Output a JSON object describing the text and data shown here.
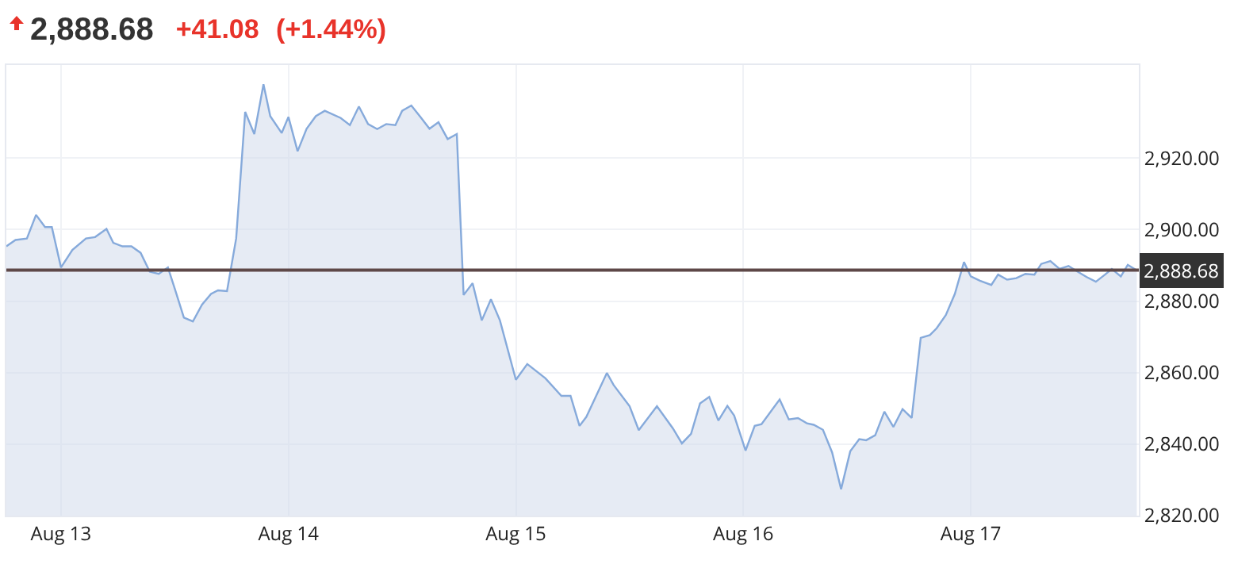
{
  "chart_data": {
    "type": "area",
    "title": "2,888.68",
    "subtitle": "+41.08 (+1.44%)",
    "x": [
      "--08-12T18:14",
      "--08-12T19:12",
      "--08-12T20:24",
      "--08-12T21:22",
      "--08-12T22:19",
      "--08-12T23:02",
      "--08-13T00:00",
      "--08-13T01:12",
      "--08-13T02:38",
      "--08-13T03:36",
      "--08-13T04:48",
      "--08-13T05:31",
      "--08-13T06:29",
      "--08-13T07:26",
      "--08-13T08:24",
      "--08-13T09:22",
      "--08-13T10:19",
      "--08-13T11:17",
      "--08-13T12:00",
      "--08-13T12:58",
      "--08-13T13:55",
      "--08-13T14:53",
      "--08-13T15:50",
      "--08-13T16:34",
      "--08-13T17:31",
      "--08-13T18:29",
      "--08-13T19:26",
      "--08-13T20:24",
      "--08-13T21:22",
      "--08-13T22:05",
      "--08-13T23:17",
      "--08-14T00:00",
      "--08-14T00:58",
      "--08-14T01:55",
      "--08-14T02:53",
      "--08-14T03:50",
      "--08-14T05:31",
      "--08-14T06:29",
      "--08-14T07:26",
      "--08-14T08:24",
      "--08-14T09:22",
      "--08-14T10:19",
      "--08-14T11:17",
      "--08-14T12:00",
      "--08-14T12:58",
      "--08-14T13:55",
      "--08-14T14:53",
      "--08-14T15:50",
      "--08-14T16:48",
      "--08-14T17:46",
      "--08-14T18:29",
      "--08-14T19:26",
      "--08-14T20:24",
      "--08-14T21:22",
      "--08-14T22:19",
      "--08-15T00:00",
      "--08-15T01:12",
      "--08-15T03:07",
      "--08-15T04:48",
      "--08-15T05:46",
      "--08-15T06:43",
      "--08-15T07:26",
      "--08-15T09:36",
      "--08-15T10:19",
      "--08-15T12:00",
      "--08-15T12:58",
      "--08-15T14:53",
      "--08-15T16:34",
      "--08-15T17:31",
      "--08-15T18:29",
      "--08-15T19:26",
      "--08-15T20:24",
      "--08-15T21:22",
      "--08-15T22:19",
      "--08-15T23:02",
      "--08-16T00:14",
      "--08-16T01:12",
      "--08-16T01:55",
      "--08-16T03:50",
      "--08-16T04:48",
      "--08-16T05:46",
      "--08-16T06:43",
      "--08-16T07:26",
      "--08-16T08:24",
      "--08-16T09:22",
      "--08-16T10:19",
      "--08-16T11:17",
      "--08-16T12:14",
      "--08-16T12:58",
      "--08-16T13:55",
      "--08-16T14:53",
      "--08-16T15:50",
      "--08-16T16:48",
      "--08-16T17:46",
      "--08-16T18:43",
      "--08-16T19:41",
      "--08-16T20:24",
      "--08-16T21:22",
      "--08-16T22:19",
      "--08-16T23:17",
      "--08-17T00:00",
      "--08-17T00:58",
      "--08-17T02:10",
      "--08-17T02:53",
      "--08-17T03:50",
      "--08-17T04:48",
      "--08-17T05:46",
      "--08-17T06:43",
      "--08-17T07:26",
      "--08-17T08:24",
      "--08-17T09:22",
      "--08-17T10:19",
      "--08-17T11:17",
      "--08-17T12:14",
      "--08-17T13:12",
      "--08-17T14:10",
      "--08-17T14:53",
      "--08-17T15:50",
      "--08-17T16:34",
      "--08-17T17:31"
    ],
    "series": [
      {
        "color": "#86aadb",
        "values": [
          2895.3,
          2897.1,
          2897.5,
          2904.1,
          2900.7,
          2900.7,
          2889.4,
          2894.3,
          2897.5,
          2897.9,
          2900.2,
          2896.3,
          2895.3,
          2895.3,
          2893.5,
          2888.2,
          2887.6,
          2889.4,
          2883.5,
          2875.4,
          2874.3,
          2879.0,
          2882.0,
          2883.0,
          2882.8,
          2897.5,
          2932.9,
          2926.7,
          2940.6,
          2931.7,
          2927.0,
          2931.5,
          2921.9,
          2928.2,
          2931.7,
          2933.2,
          2931.2,
          2929.2,
          2934.4,
          2929.5,
          2928.1,
          2929.5,
          2929.2,
          2933.2,
          2934.7,
          2931.5,
          2928.2,
          2930.0,
          2925.3,
          2926.7,
          2881.7,
          2885.0,
          2874.6,
          2880.5,
          2874.6,
          2858.0,
          2862.4,
          2858.4,
          2853.5,
          2853.5,
          2845.1,
          2847.6,
          2859.9,
          2856.5,
          2850.6,
          2843.9,
          2850.6,
          2844.4,
          2840.2,
          2842.9,
          2851.4,
          2853.2,
          2846.6,
          2850.7,
          2848.0,
          2838.2,
          2845.1,
          2845.6,
          2852.5,
          2846.9,
          2847.3,
          2845.8,
          2845.4,
          2844.0,
          2837.7,
          2827.4,
          2838.0,
          2841.4,
          2841.1,
          2842.5,
          2849.1,
          2844.8,
          2849.8,
          2847.3,
          2869.7,
          2870.5,
          2872.4,
          2876.1,
          2882.0,
          2890.9,
          2886.9,
          2885.7,
          2884.5,
          2887.4,
          2886.0,
          2886.4,
          2887.6,
          2887.4,
          2890.4,
          2891.2,
          2889.0,
          2889.8,
          2888.2,
          2886.7,
          2885.4,
          2887.4,
          2889.0,
          2886.9,
          2890.1,
          2888.6
        ]
      }
    ],
    "xlim": [
      "--08-12T18:14",
      "--08-17T17:44"
    ],
    "xticks": [
      {
        "value": "--08-13",
        "label": "Aug 13"
      },
      {
        "value": "--08-14",
        "label": "Aug 14"
      },
      {
        "value": "--08-15",
        "label": "Aug 15"
      },
      {
        "value": "--08-16",
        "label": "Aug 16"
      },
      {
        "value": "--08-17",
        "label": "Aug 17"
      }
    ],
    "ylim": [
      2820,
      2946
    ],
    "yticks": [
      {
        "value": 2820,
        "label": "2,820.00"
      },
      {
        "value": 2840,
        "label": "2,840.00"
      },
      {
        "value": 2860,
        "label": "2,860.00"
      },
      {
        "value": 2880,
        "label": "2,880.00"
      },
      {
        "value": 2900,
        "label": "2,900.00"
      },
      {
        "value": 2920,
        "label": "2,920.00"
      }
    ],
    "ref_lines": [
      {
        "axis": "y",
        "value": 2888.68,
        "label": "2,888.68",
        "color": "#5e4848"
      }
    ],
    "grid": true
  }
}
